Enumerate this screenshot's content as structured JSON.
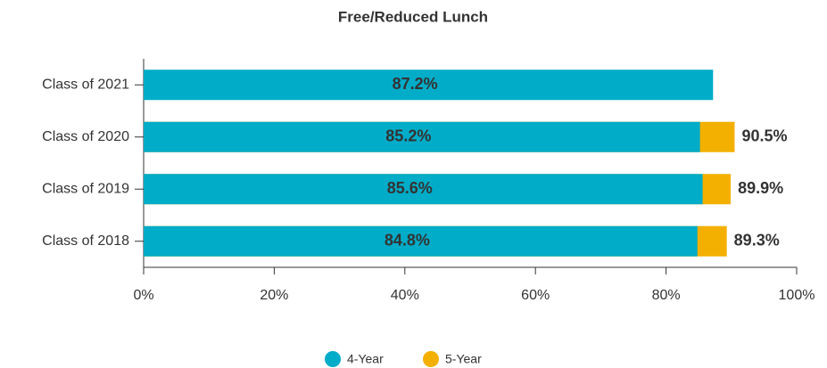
{
  "chart_data": {
    "type": "bar",
    "orientation": "horizontal",
    "title": "Free/Reduced Lunch",
    "categories": [
      "Class of 2021",
      "Class of 2020",
      "Class of 2019",
      "Class of 2018"
    ],
    "series": [
      {
        "name": "4-Year",
        "color": "#00acc8",
        "values": [
          87.2,
          85.2,
          85.6,
          84.8
        ],
        "value_labels": [
          "87.2%",
          "85.2%",
          "85.6%",
          "84.8%"
        ]
      },
      {
        "name": "5-Year",
        "color": "#f4b000",
        "values": [
          null,
          90.5,
          89.9,
          89.3
        ],
        "value_labels": [
          null,
          "90.5%",
          "89.9%",
          "89.3%"
        ]
      }
    ],
    "xlim": [
      0,
      100
    ],
    "xticks": [
      {
        "value": 0,
        "label": "0%"
      },
      {
        "value": 20,
        "label": "20%"
      },
      {
        "value": 40,
        "label": "40%"
      },
      {
        "value": 60,
        "label": "60%"
      },
      {
        "value": 80,
        "label": "80%"
      },
      {
        "value": 100,
        "label": "100%"
      }
    ],
    "legend": "bottom"
  }
}
